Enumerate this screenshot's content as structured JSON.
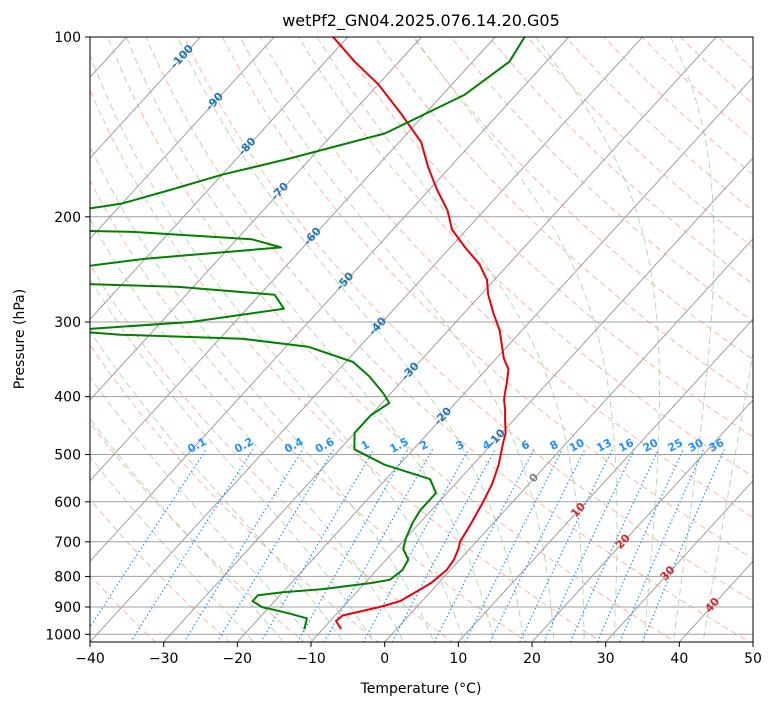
{
  "chart_data": {
    "type": "line",
    "subtype": "skew-t log-p",
    "title": "wetPf2_GN04.2025.076.14.20.G05",
    "xlabel": "Temperature (°C)",
    "ylabel": "Pressure (hPa)",
    "xlim": [
      -40,
      50
    ],
    "ylim": [
      1030,
      100
    ],
    "yscale": "log",
    "grid": true,
    "x_ticks": [
      "−40",
      "−30",
      "−20",
      "−10",
      "0",
      "10",
      "20",
      "30",
      "40",
      "50"
    ],
    "y_ticks": [
      "100",
      "200",
      "300",
      "400",
      "500",
      "600",
      "700",
      "800",
      "900",
      "1000"
    ],
    "y_tick_values": [
      100,
      200,
      300,
      400,
      500,
      600,
      700,
      800,
      900,
      1000
    ],
    "colors": {
      "temperature": "#e8000b",
      "dewpoint": "#008000",
      "isotherm": "#a0a0a0",
      "dry_adiabat": "#f5a080",
      "moist_adiabat": "#9fd49f",
      "mixing_ratio": "#1e90ff",
      "isotherm_label_cold": "#1f77b4",
      "isotherm_label_warm": "#d62728",
      "isotherm_label_zero": "#808080"
    },
    "series": [
      {
        "key": "temperature",
        "points": [
          [
            -7.5,
            980
          ],
          [
            -9.2,
            950
          ],
          [
            -9.0,
            930
          ],
          [
            -5.0,
            900
          ],
          [
            -3,
            880
          ],
          [
            -2,
            850
          ],
          [
            -1,
            820
          ],
          [
            -0.5,
            780
          ],
          [
            -0.8,
            750
          ],
          [
            -1.5,
            720
          ],
          [
            -2.2,
            700
          ],
          [
            -3.0,
            650
          ],
          [
            -4.0,
            600
          ],
          [
            -5.0,
            560
          ],
          [
            -6.5,
            520
          ],
          [
            -8.5,
            480
          ],
          [
            -9.5,
            460
          ],
          [
            -11.0,
            440
          ],
          [
            -12.5,
            420
          ],
          [
            -13.8,
            405
          ],
          [
            -14.5,
            395
          ],
          [
            -15.5,
            380
          ],
          [
            -17,
            360
          ],
          [
            -19,
            345
          ],
          [
            -23,
            310
          ],
          [
            -26,
            290
          ],
          [
            -29,
            270
          ],
          [
            -31,
            255
          ],
          [
            -34,
            240
          ],
          [
            -38,
            225
          ],
          [
            -42,
            210
          ],
          [
            -45,
            195
          ],
          [
            -49,
            180
          ],
          [
            -53,
            165
          ],
          [
            -57,
            150
          ],
          [
            -63,
            135
          ],
          [
            -70,
            120
          ],
          [
            -76,
            110
          ],
          [
            -82,
            100
          ]
        ]
      },
      {
        "key": "dewpoint",
        "points": [
          [
            -12.5,
            980
          ],
          [
            -13,
            960
          ],
          [
            -13.5,
            940
          ],
          [
            -17,
            920
          ],
          [
            -21,
            900
          ],
          [
            -23,
            880
          ],
          [
            -23,
            860
          ],
          [
            -20,
            850
          ],
          [
            -15,
            840
          ],
          [
            -9,
            820
          ],
          [
            -7,
            810
          ],
          [
            -6.5,
            780
          ],
          [
            -7,
            750
          ],
          [
            -9,
            720
          ],
          [
            -10,
            690
          ],
          [
            -11,
            650
          ],
          [
            -11.5,
            620
          ],
          [
            -11.5,
            600
          ],
          [
            -11.5,
            580
          ],
          [
            -14,
            550
          ],
          [
            -22,
            520
          ],
          [
            -28,
            490
          ],
          [
            -30,
            460
          ],
          [
            -30,
            430
          ],
          [
            -29,
            410
          ],
          [
            -31,
            395
          ],
          [
            -35,
            370
          ],
          [
            -39,
            350
          ],
          [
            -47,
            330
          ],
          [
            -57,
            320
          ],
          [
            -74,
            315
          ],
          [
            -82,
            310
          ],
          [
            -66,
            300
          ],
          [
            -55,
            285
          ],
          [
            -58,
            270
          ],
          [
            -72,
            262
          ],
          [
            -90,
            258
          ],
          [
            -95,
            250
          ],
          [
            -80,
            235
          ],
          [
            -63,
            225
          ],
          [
            -68,
            218
          ],
          [
            -85,
            212
          ],
          [
            -100,
            210
          ],
          [
            -105,
            205
          ],
          [
            -90,
            190
          ],
          [
            -85,
            180
          ],
          [
            -80,
            170
          ],
          [
            -73,
            160
          ],
          [
            -63,
            145
          ],
          [
            -57,
            125
          ],
          [
            -55,
            110
          ],
          [
            -56,
            100
          ]
        ]
      }
    ],
    "isotherm_labels": [
      "-100",
      "-90",
      "-80",
      "-70",
      "-60",
      "-50",
      "-40",
      "-30",
      "-20",
      "-10",
      "0",
      "10",
      "20",
      "30",
      "40"
    ],
    "isotherm_label_values": [
      -100,
      -90,
      -80,
      -70,
      -60,
      -50,
      -40,
      -30,
      -20,
      -10,
      0,
      10,
      20,
      30,
      40
    ],
    "mixing_ratio_labels": [
      "0.1",
      "0.2",
      "0.4",
      "0.6",
      "1",
      "1.5",
      "2",
      "3",
      "4",
      "6",
      "8",
      "10",
      "13",
      "16",
      "20",
      "25",
      "30",
      "36"
    ],
    "mixing_ratio_values": [
      0.1,
      0.2,
      0.4,
      0.6,
      1,
      1.5,
      2,
      3,
      4,
      6,
      8,
      10,
      13,
      16,
      20,
      25,
      30,
      36
    ]
  }
}
